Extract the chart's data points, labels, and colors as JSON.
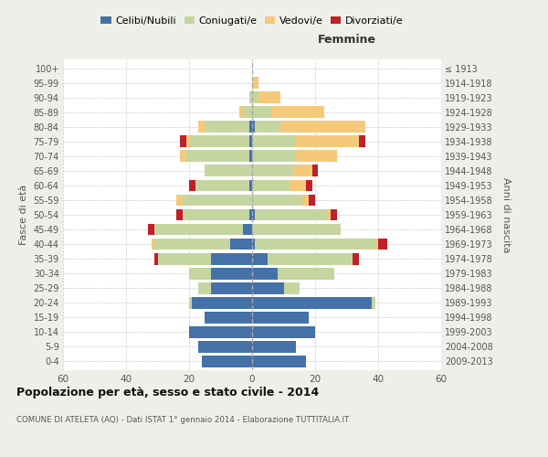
{
  "age_groups": [
    "0-4",
    "5-9",
    "10-14",
    "15-19",
    "20-24",
    "25-29",
    "30-34",
    "35-39",
    "40-44",
    "45-49",
    "50-54",
    "55-59",
    "60-64",
    "65-69",
    "70-74",
    "75-79",
    "80-84",
    "85-89",
    "90-94",
    "95-99",
    "100+"
  ],
  "birth_years": [
    "2009-2013",
    "2004-2008",
    "1999-2003",
    "1994-1998",
    "1989-1993",
    "1984-1988",
    "1979-1983",
    "1974-1978",
    "1969-1973",
    "1964-1968",
    "1959-1963",
    "1954-1958",
    "1949-1953",
    "1944-1948",
    "1939-1943",
    "1934-1938",
    "1929-1933",
    "1924-1928",
    "1919-1923",
    "1914-1918",
    "≤ 1913"
  ],
  "male": {
    "celibi": [
      16,
      17,
      20,
      15,
      19,
      13,
      13,
      13,
      7,
      3,
      1,
      0,
      1,
      0,
      1,
      1,
      1,
      0,
      0,
      0,
      0
    ],
    "coniugati": [
      0,
      0,
      0,
      0,
      1,
      4,
      7,
      17,
      24,
      28,
      21,
      22,
      17,
      15,
      20,
      19,
      14,
      3,
      1,
      0,
      0
    ],
    "vedovi": [
      0,
      0,
      0,
      0,
      0,
      0,
      0,
      0,
      1,
      0,
      0,
      2,
      0,
      0,
      2,
      1,
      2,
      1,
      0,
      0,
      0
    ],
    "divorziati": [
      0,
      0,
      0,
      0,
      0,
      0,
      0,
      1,
      0,
      2,
      2,
      0,
      2,
      0,
      0,
      2,
      0,
      0,
      0,
      0,
      0
    ]
  },
  "female": {
    "celibi": [
      17,
      14,
      20,
      18,
      38,
      10,
      8,
      5,
      1,
      0,
      1,
      0,
      0,
      0,
      0,
      0,
      1,
      0,
      0,
      0,
      0
    ],
    "coniugati": [
      0,
      0,
      0,
      0,
      1,
      5,
      18,
      27,
      38,
      28,
      23,
      16,
      12,
      13,
      14,
      14,
      8,
      6,
      2,
      0,
      0
    ],
    "vedovi": [
      0,
      0,
      0,
      0,
      0,
      0,
      0,
      0,
      1,
      0,
      1,
      2,
      5,
      6,
      13,
      20,
      27,
      17,
      7,
      2,
      0
    ],
    "divorziati": [
      0,
      0,
      0,
      0,
      0,
      0,
      0,
      2,
      3,
      0,
      2,
      2,
      2,
      2,
      0,
      2,
      0,
      0,
      0,
      0,
      0
    ]
  },
  "colors": {
    "celibi": "#4472a8",
    "coniugati": "#c5d5a0",
    "vedovi": "#f5c97a",
    "divorziati": "#c0202a"
  },
  "legend_labels": [
    "Celibi/Nubili",
    "Coniugati/e",
    "Vedovi/e",
    "Divorziati/e"
  ],
  "title": "Popolazione per età, sesso e stato civile - 2014",
  "subtitle": "COMUNE DI ATELETA (AQ) - Dati ISTAT 1° gennaio 2014 - Elaborazione TUTTITALIA.IT",
  "ylabel_left": "Fasce di età",
  "ylabel_right": "Anni di nascita",
  "xlabel_right": "Femmine",
  "xlim": 60,
  "background_color": "#efefea",
  "plot_bg_color": "#ffffff"
}
